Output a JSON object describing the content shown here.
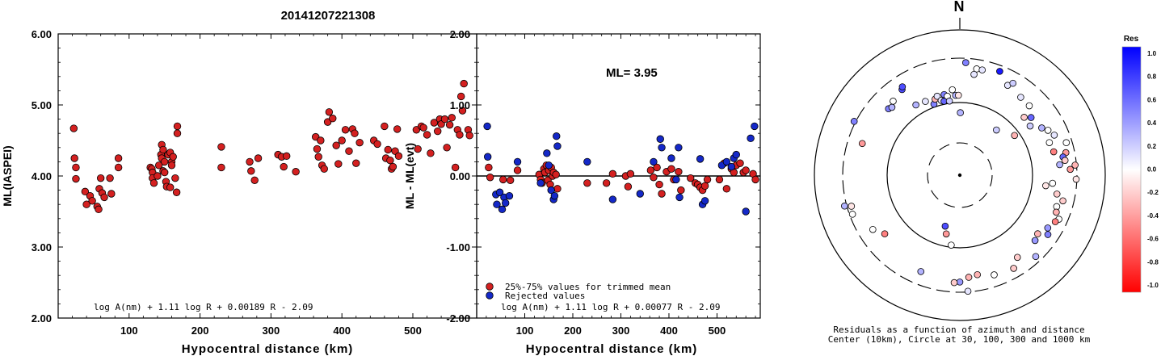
{
  "title": "20141207221308",
  "chart_data": [
    {
      "type": "scatter",
      "title": "",
      "xlabel": "Hypocentral distance (km)",
      "ylabel": "ML(IASPEI)",
      "xlim": [
        0,
        590
      ],
      "ylim": [
        2.0,
        6.0
      ],
      "xticks": [
        "100",
        "200",
        "300",
        "400",
        "500"
      ],
      "yticks": [
        "2.00",
        "3.00",
        "4.00",
        "5.00",
        "6.00"
      ],
      "formula": "log A(nm) + 1.11 log R + 0.00189 R - 2.09",
      "color": "#d42020",
      "points": [
        [
          22,
          4.67
        ],
        [
          23,
          4.25
        ],
        [
          25,
          4.12
        ],
        [
          25,
          3.96
        ],
        [
          38,
          3.78
        ],
        [
          40,
          3.6
        ],
        [
          45,
          3.72
        ],
        [
          48,
          3.65
        ],
        [
          55,
          3.57
        ],
        [
          57,
          3.53
        ],
        [
          58,
          3.82
        ],
        [
          60,
          3.97
        ],
        [
          62,
          3.76
        ],
        [
          65,
          3.7
        ],
        [
          73,
          3.97
        ],
        [
          75,
          3.75
        ],
        [
          85,
          4.25
        ],
        [
          85,
          4.12
        ],
        [
          130,
          4.12
        ],
        [
          132,
          4.1
        ],
        [
          133,
          4.05
        ],
        [
          133,
          3.97
        ],
        [
          135,
          3.9
        ],
        [
          140,
          4.0
        ],
        [
          142,
          4.15
        ],
        [
          145,
          4.3
        ],
        [
          146,
          4.25
        ],
        [
          146,
          4.44
        ],
        [
          148,
          4.37
        ],
        [
          148,
          4.07
        ],
        [
          150,
          4.05
        ],
        [
          150,
          4.2
        ],
        [
          152,
          3.92
        ],
        [
          153,
          3.85
        ],
        [
          155,
          4.3
        ],
        [
          158,
          3.84
        ],
        [
          158,
          4.33
        ],
        [
          160,
          4.2
        ],
        [
          160,
          4.15
        ],
        [
          162,
          4.27
        ],
        [
          165,
          3.97
        ],
        [
          167,
          3.77
        ],
        [
          168,
          4.7
        ],
        [
          168,
          4.6
        ],
        [
          230,
          4.41
        ],
        [
          230,
          4.12
        ],
        [
          270,
          4.2
        ],
        [
          272,
          4.07
        ],
        [
          277,
          3.94
        ],
        [
          282,
          4.25
        ],
        [
          310,
          4.3
        ],
        [
          315,
          4.27
        ],
        [
          318,
          4.13
        ],
        [
          322,
          4.28
        ],
        [
          335,
          4.06
        ],
        [
          363,
          4.55
        ],
        [
          365,
          4.38
        ],
        [
          367,
          4.27
        ],
        [
          370,
          4.5
        ],
        [
          372,
          4.15
        ],
        [
          375,
          4.1
        ],
        [
          380,
          4.76
        ],
        [
          382,
          4.9
        ],
        [
          387,
          4.81
        ],
        [
          392,
          4.43
        ],
        [
          395,
          4.17
        ],
        [
          400,
          4.5
        ],
        [
          405,
          4.65
        ],
        [
          410,
          4.35
        ],
        [
          415,
          4.66
        ],
        [
          418,
          4.6
        ],
        [
          420,
          4.18
        ],
        [
          425,
          4.47
        ],
        [
          445,
          4.5
        ],
        [
          450,
          4.45
        ],
        [
          460,
          4.7
        ],
        [
          462,
          4.25
        ],
        [
          465,
          4.37
        ],
        [
          468,
          4.22
        ],
        [
          470,
          4.1
        ],
        [
          472,
          4.13
        ],
        [
          475,
          4.35
        ],
        [
          478,
          4.66
        ],
        [
          480,
          4.28
        ],
        [
          505,
          4.65
        ],
        [
          507,
          4.38
        ],
        [
          512,
          4.7
        ],
        [
          515,
          4.68
        ],
        [
          520,
          4.58
        ],
        [
          525,
          4.32
        ],
        [
          530,
          4.75
        ],
        [
          535,
          4.63
        ],
        [
          538,
          4.8
        ],
        [
          540,
          4.73
        ],
        [
          545,
          4.8
        ],
        [
          548,
          4.4
        ],
        [
          552,
          4.72
        ],
        [
          555,
          4.82
        ],
        [
          560,
          4.12
        ],
        [
          563,
          4.65
        ],
        [
          566,
          4.58
        ],
        [
          568,
          5.12
        ],
        [
          570,
          4.92
        ],
        [
          572,
          5.3
        ],
        [
          578,
          4.65
        ],
        [
          580,
          4.57
        ]
      ]
    },
    {
      "type": "scatter",
      "title": "",
      "xlabel": "Hypocentral distance (km)",
      "ylabel": "ML - ML(evt)",
      "xlim": [
        0,
        590
      ],
      "ylim": [
        -2.0,
        2.0
      ],
      "xticks": [
        "100",
        "200",
        "300",
        "400",
        "500"
      ],
      "yticks": [
        "-2.00",
        "-1.00",
        "0.00",
        "1.00",
        "2.00"
      ],
      "annotation": "ML= 3.95",
      "formula": "log A(nm) + 1.11 log R + 0.00077 R - 2.09",
      "legend": [
        "25%-75% values for trimmed mean",
        "Rejected values"
      ],
      "series": [
        {
          "name": "25%-75% values for trimmed mean",
          "color": "#d42020",
          "points": [
            [
              25,
              0.12
            ],
            [
              28,
              -0.02
            ],
            [
              55,
              -0.05
            ],
            [
              70,
              -0.06
            ],
            [
              85,
              0.08
            ],
            [
              130,
              0.02
            ],
            [
              133,
              -0.05
            ],
            [
              136,
              -0.1
            ],
            [
              140,
              0.1
            ],
            [
              142,
              0.05
            ],
            [
              145,
              0.15
            ],
            [
              148,
              -0.06
            ],
            [
              150,
              0.08
            ],
            [
              153,
              -0.12
            ],
            [
              155,
              0.12
            ],
            [
              158,
              0.0
            ],
            [
              160,
              0.05
            ],
            [
              165,
              0.02
            ],
            [
              168,
              -0.18
            ],
            [
              230,
              -0.1
            ],
            [
              270,
              -0.1
            ],
            [
              283,
              0.03
            ],
            [
              310,
              0.0
            ],
            [
              315,
              -0.15
            ],
            [
              320,
              0.03
            ],
            [
              362,
              0.08
            ],
            [
              368,
              -0.02
            ],
            [
              375,
              0.12
            ],
            [
              380,
              -0.12
            ],
            [
              385,
              -0.25
            ],
            [
              395,
              0.06
            ],
            [
              405,
              0.1
            ],
            [
              410,
              -0.05
            ],
            [
              420,
              0.06
            ],
            [
              425,
              -0.2
            ],
            [
              445,
              -0.03
            ],
            [
              455,
              -0.1
            ],
            [
              460,
              -0.12
            ],
            [
              465,
              -0.16
            ],
            [
              470,
              -0.2
            ],
            [
              475,
              -0.14
            ],
            [
              480,
              -0.05
            ],
            [
              505,
              -0.05
            ],
            [
              515,
              0.18
            ],
            [
              520,
              -0.18
            ],
            [
              530,
              0.1
            ],
            [
              535,
              0.05
            ],
            [
              540,
              0.15
            ],
            [
              548,
              0.18
            ],
            [
              555,
              0.05
            ],
            [
              560,
              0.08
            ],
            [
              575,
              0.03
            ],
            [
              580,
              -0.05
            ]
          ]
        },
        {
          "name": "Rejected values",
          "color": "#1428c8",
          "points": [
            [
              22,
              0.7
            ],
            [
              23,
              0.27
            ],
            [
              40,
              -0.26
            ],
            [
              42,
              -0.4
            ],
            [
              48,
              -0.23
            ],
            [
              53,
              -0.47
            ],
            [
              57,
              -0.3
            ],
            [
              60,
              -0.38
            ],
            [
              68,
              -0.28
            ],
            [
              85,
              0.2
            ],
            [
              133,
              -0.1
            ],
            [
              146,
              0.32
            ],
            [
              150,
              0.15
            ],
            [
              155,
              -0.2
            ],
            [
              160,
              -0.33
            ],
            [
              162,
              -0.28
            ],
            [
              166,
              0.56
            ],
            [
              168,
              0.42
            ],
            [
              230,
              0.2
            ],
            [
              283,
              -0.33
            ],
            [
              340,
              -0.25
            ],
            [
              368,
              0.2
            ],
            [
              382,
              0.52
            ],
            [
              385,
              0.4
            ],
            [
              405,
              0.25
            ],
            [
              415,
              -0.05
            ],
            [
              420,
              0.4
            ],
            [
              422,
              -0.3
            ],
            [
              465,
              0.24
            ],
            [
              470,
              -0.4
            ],
            [
              475,
              -0.35
            ],
            [
              510,
              0.15
            ],
            [
              520,
              0.2
            ],
            [
              530,
              0.13
            ],
            [
              535,
              0.25
            ],
            [
              540,
              0.3
            ],
            [
              560,
              -0.5
            ],
            [
              570,
              0.53
            ],
            [
              578,
              0.7
            ]
          ]
        }
      ]
    },
    {
      "type": "scatter",
      "title": "",
      "north_label": "N",
      "caption_lines": [
        "Residuals as a function of azimuth and distance",
        "Center (10km), Circle at 30, 100, 300 and 1000 km"
      ],
      "colorbar": {
        "title": "Res",
        "ticks": [
          "1.0",
          "0.8",
          "0.6",
          "0.4",
          "0.2",
          "0.0",
          "-0.2",
          "-0.4",
          "-0.6",
          "-0.8",
          "-1.0"
        ],
        "max_color": "#0000ff",
        "zero_color": "#ffffff",
        "min_color": "#ff0000"
      },
      "points_polar": [
        [
          3,
          1.55,
          0.5
        ],
        [
          9,
          1.48,
          0.0
        ],
        [
          12,
          1.48,
          0.1
        ],
        [
          21,
          1.53,
          0.9
        ],
        [
          28,
          1.4,
          0.1
        ],
        [
          30,
          1.46,
          0.2
        ],
        [
          38,
          1.36,
          0.1
        ],
        [
          45,
          1.35,
          0.0
        ],
        [
          48,
          1.19,
          -0.2
        ],
        [
          51,
          1.26,
          0.6
        ],
        [
          55,
          1.18,
          0.2
        ],
        [
          60,
          1.3,
          0.3
        ],
        [
          63,
          1.36,
          0.0
        ],
        [
          67,
          1.41,
          0.1
        ],
        [
          70,
          1.31,
          0.0
        ],
        [
          73,
          1.53,
          0.0
        ],
        [
          76,
          1.33,
          -0.5
        ],
        [
          78,
          1.49,
          -0.4
        ],
        [
          80,
          1.44,
          0.6
        ],
        [
          82,
          1.46,
          -0.2
        ],
        [
          84,
          1.38,
          0.3
        ],
        [
          85,
          1.59,
          -0.3
        ],
        [
          87,
          1.52,
          -0.4
        ],
        [
          92,
          1.6,
          -0.1
        ],
        [
          95,
          1.28,
          0.0
        ],
        [
          97,
          1.19,
          -0.1
        ],
        [
          101,
          1.36,
          -0.2
        ],
        [
          104,
          1.46,
          -0.2
        ],
        [
          108,
          1.4,
          0.0
        ],
        [
          111,
          1.42,
          -0.3
        ],
        [
          114,
          1.49,
          0.0
        ],
        [
          116,
          1.46,
          -0.5
        ],
        [
          121,
          1.41,
          0.4
        ],
        [
          124,
          1.46,
          0.5
        ],
        [
          127,
          1.34,
          -0.3
        ],
        [
          131,
          1.37,
          0.4
        ],
        [
          137,
          1.53,
          0.3
        ],
        [
          145,
          1.38,
          -0.2
        ],
        [
          150,
          1.48,
          -0.2
        ],
        [
          161,
          1.45,
          0.0
        ],
        [
          170,
          1.39,
          -0.3
        ],
        [
          175,
          1.41,
          -0.3
        ],
        [
          176,
          1.6,
          0.1
        ],
        [
          180,
          1.47,
          0.4
        ],
        [
          183,
          1.48,
          -0.2
        ],
        [
          187,
          0.97,
          0.0
        ],
        [
          193,
          0.83,
          -0.4
        ],
        [
          196,
          0.73,
          0.7
        ],
        [
          202,
          1.43,
          0.3
        ],
        [
          232,
          1.31,
          -0.5
        ],
        [
          238,
          1.41,
          0.0
        ],
        [
          250,
          1.57,
          0.0
        ],
        [
          254,
          1.55,
          -0.1
        ],
        [
          255,
          1.64,
          0.3
        ],
        [
          288,
          1.41,
          -0.4
        ],
        [
          297,
          1.63,
          0.5
        ],
        [
          313,
          1.34,
          0.5
        ],
        [
          315,
          1.32,
          0.3
        ],
        [
          318,
          1.37,
          0.0
        ],
        [
          326,
          1.42,
          0.7
        ],
        [
          327,
          1.45,
          0.7
        ],
        [
          328,
          1.14,
          0.3
        ],
        [
          335,
          1.12,
          0.1
        ],
        [
          340,
          1.04,
          0.5
        ],
        [
          342,
          1.1,
          -0.3
        ],
        [
          344,
          1.13,
          0.1
        ],
        [
          346,
          1.06,
          0.1
        ],
        [
          348,
          1.04,
          0.6
        ],
        [
          349,
          1.13,
          0.5
        ],
        [
          351,
          1.1,
          0.0
        ],
        [
          352,
          1.03,
          0.2
        ],
        [
          355,
          1.18,
          0.0
        ],
        [
          357,
          1.1,
          0.3
        ],
        [
          359,
          1.1,
          -0.1
        ],
        [
          8,
          1.4,
          0.1
        ],
        [
          39,
          0.8,
          0.2
        ],
        [
          54,
          0.93,
          -0.3
        ],
        [
          0.5,
          0.86,
          0.3
        ]
      ]
    }
  ]
}
